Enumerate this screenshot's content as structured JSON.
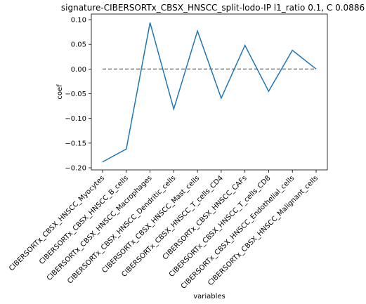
{
  "chart_data": {
    "type": "line",
    "title": "signature-CIBERSORTx_CBSX_HNSCC_split-lodo-IP l1_ratio 0.1, C 0.0886",
    "xlabel": "variables",
    "ylabel": "coef",
    "categories": [
      "CIBERSORTx_CBSX_HNSCC_Myocytes",
      "CIBERSORTx_CBSX_HNSCC_B_cells",
      "CIBERSORTx_CBSX_HNSCC_Macrophages",
      "CIBERSORTx_CBSX_HNSCC_Dendritic_cells",
      "CIBERSORTx_CBSX_HNSCC_Mast_cells",
      "CIBERSORTx_CBSX_HNSCC_T_cells_CD4",
      "CIBERSORTx_CBSX_HNSCC_CAFs",
      "CIBERSORTx_CBSX_HNSCC_T_cells_CD8",
      "CIBERSORTx_CBSX_HNSCC_Endothelial_cells",
      "CIBERSORTx_CBSX_HNSCC_Malignant_cells"
    ],
    "series": [
      {
        "values": [
          -0.188,
          -0.162,
          0.094,
          -0.081,
          0.077,
          -0.059,
          0.048,
          -0.045,
          0.038,
          0.0
        ],
        "color": "#1f77b4"
      }
    ],
    "reference_line": {
      "y": 0.0,
      "style": "dashed",
      "color": "#808080"
    },
    "yticks": [
      0.1,
      0.05,
      0.0,
      -0.05,
      -0.1,
      -0.15,
      -0.2
    ],
    "ytick_labels": [
      "0.10",
      "0.05",
      "0.00",
      "−0.05",
      "−0.10",
      "−0.15",
      "−0.20"
    ],
    "ylim": [
      -0.2,
      0.1
    ],
    "grid": false,
    "legend": "none"
  }
}
